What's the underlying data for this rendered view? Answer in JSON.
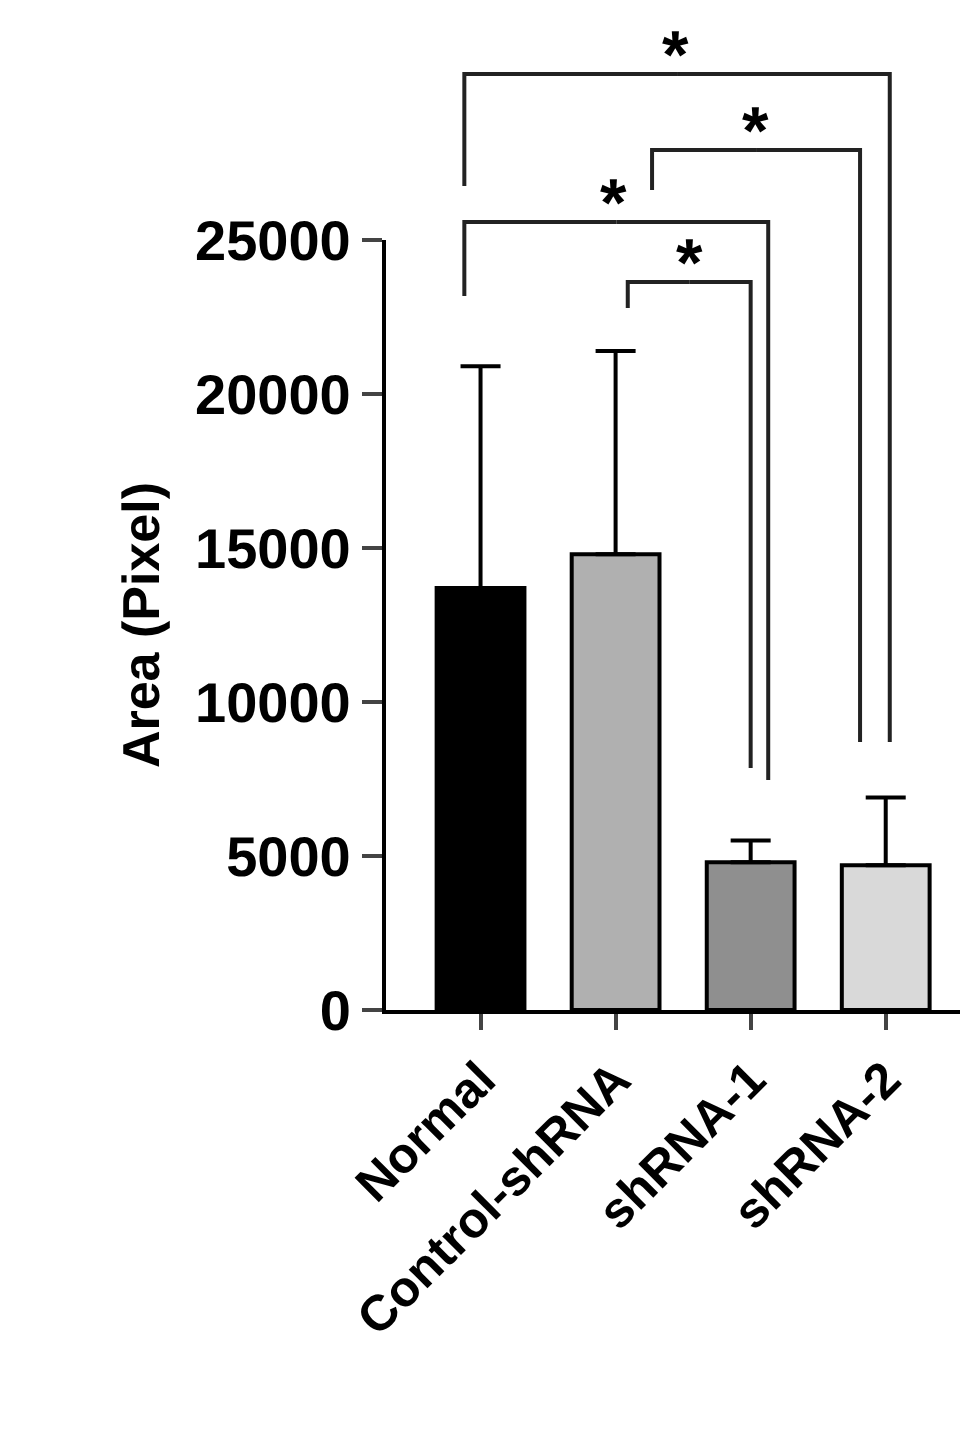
{
  "chart_data": {
    "type": "bar",
    "ylabel": "Area (Pixel)",
    "categories": [
      "Normal",
      "Control-shRNA",
      "shRNA-1",
      "shRNA-2"
    ],
    "values": [
      13700,
      14800,
      4800,
      4700
    ],
    "colors": [
      "#000000",
      "#b0b0b0",
      "#8f8f8f",
      "#d9d9d9"
    ],
    "errors": [
      [
        13700,
        20900
      ],
      [
        14800,
        21400
      ],
      [
        4800,
        5500
      ],
      [
        4700,
        6900
      ]
    ],
    "ylim": [
      0,
      25000
    ],
    "yticks": [
      0,
      5000,
      10000,
      15000,
      20000,
      25000
    ],
    "grid": false,
    "annotations": [
      "*",
      "*",
      "*",
      "*"
    ]
  }
}
